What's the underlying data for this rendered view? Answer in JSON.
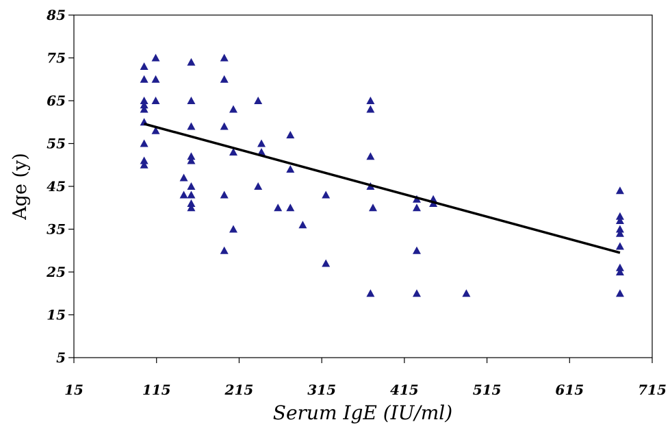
{
  "chart_data": {
    "type": "scatter",
    "title": "",
    "xlabel": "Serum IgE (IU/ml)",
    "ylabel": "Age (y)",
    "xlim": [
      15,
      715
    ],
    "ylim": [
      5,
      85
    ],
    "x_ticks": [
      15,
      115,
      215,
      315,
      415,
      515,
      615,
      715
    ],
    "y_ticks": [
      5,
      15,
      25,
      35,
      45,
      55,
      65,
      75,
      85
    ],
    "grid": false,
    "legend": "none",
    "marker": "triangle",
    "marker_color": "#1f1f8f",
    "line_color": "#000000",
    "points": [
      [
        100,
        73
      ],
      [
        100,
        70
      ],
      [
        100,
        65
      ],
      [
        100,
        64
      ],
      [
        100,
        63
      ],
      [
        100,
        60
      ],
      [
        100,
        55
      ],
      [
        100,
        51
      ],
      [
        100,
        50
      ],
      [
        114,
        75
      ],
      [
        114,
        70
      ],
      [
        114,
        65
      ],
      [
        114,
        58
      ],
      [
        148,
        47
      ],
      [
        148,
        43
      ],
      [
        157,
        74
      ],
      [
        157,
        65
      ],
      [
        157,
        59
      ],
      [
        157,
        52
      ],
      [
        157,
        51
      ],
      [
        157,
        45
      ],
      [
        157,
        43
      ],
      [
        157,
        41
      ],
      [
        157,
        40
      ],
      [
        197,
        75
      ],
      [
        197,
        70
      ],
      [
        197,
        59
      ],
      [
        197,
        43
      ],
      [
        197,
        30
      ],
      [
        208,
        63
      ],
      [
        208,
        53
      ],
      [
        208,
        35
      ],
      [
        238,
        65
      ],
      [
        238,
        45
      ],
      [
        242,
        55
      ],
      [
        242,
        53
      ],
      [
        262,
        40
      ],
      [
        277,
        57
      ],
      [
        277,
        49
      ],
      [
        277,
        40
      ],
      [
        292,
        36
      ],
      [
        320,
        43
      ],
      [
        320,
        27
      ],
      [
        374,
        65
      ],
      [
        374,
        63
      ],
      [
        374,
        52
      ],
      [
        374,
        45
      ],
      [
        374,
        20
      ],
      [
        377,
        40
      ],
      [
        430,
        42
      ],
      [
        430,
        40
      ],
      [
        430,
        30
      ],
      [
        430,
        20
      ],
      [
        450,
        42
      ],
      [
        450,
        41
      ],
      [
        490,
        20
      ],
      [
        676,
        44
      ],
      [
        676,
        38
      ],
      [
        676,
        37
      ],
      [
        676,
        35
      ],
      [
        676,
        34
      ],
      [
        676,
        31
      ],
      [
        676,
        26
      ],
      [
        676,
        25
      ],
      [
        676,
        20
      ]
    ],
    "trendline": {
      "x": [
        100,
        676
      ],
      "y": [
        59.6,
        29.5
      ]
    }
  }
}
